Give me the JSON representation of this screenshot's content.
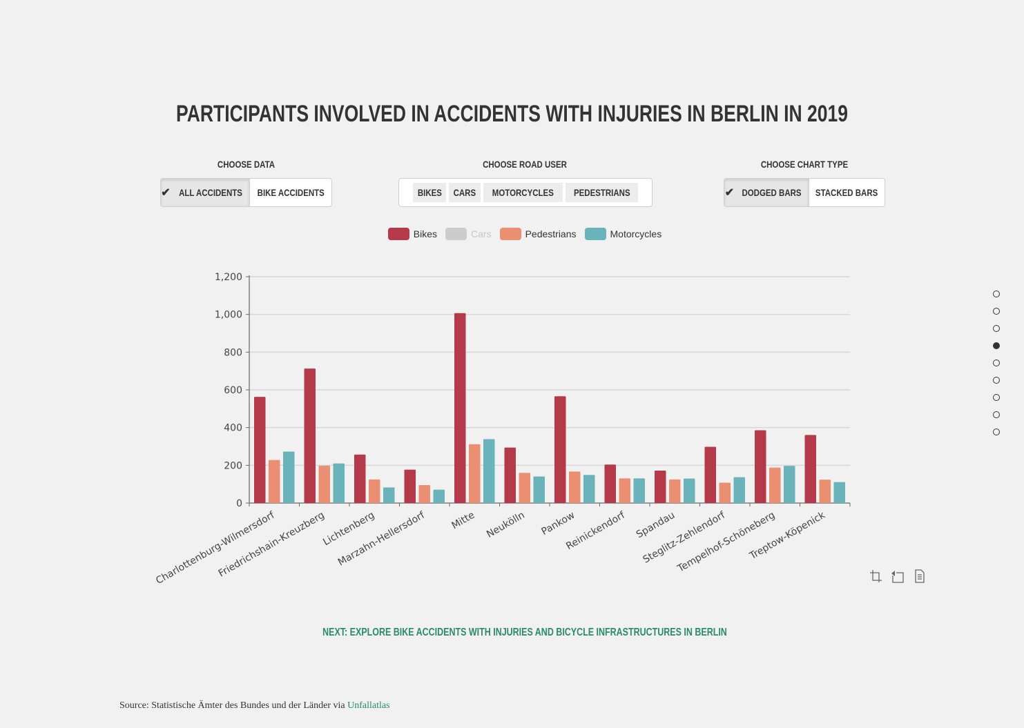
{
  "title": "PARTICIPANTS INVOLVED IN ACCIDENTS WITH INJURIES IN BERLIN IN 2019",
  "controls": {
    "data_label": "CHOOSE DATA",
    "data_options": [
      "ALL ACCIDENTS",
      "BIKE ACCIDENTS"
    ],
    "data_selected": "ALL ACCIDENTS",
    "road_user_label": "CHOOSE ROAD USER",
    "road_user_options": [
      "BIKES",
      "CARS",
      "MOTORCYCLES",
      "PEDESTRIANS"
    ],
    "chart_type_label": "CHOOSE CHART TYPE",
    "chart_type_options": [
      "DODGED BARS",
      "STACKED BARS"
    ],
    "chart_type_selected": "DODGED BARS"
  },
  "legend": [
    {
      "name": "Bikes",
      "color": "#b43a4a",
      "active": true
    },
    {
      "name": "Cars",
      "color": "#cccccc",
      "active": false
    },
    {
      "name": "Pedestrians",
      "color": "#ea8f71",
      "active": true
    },
    {
      "name": "Motorcycles",
      "color": "#6bb3bb",
      "active": true
    }
  ],
  "chart_data": {
    "type": "bar",
    "categories": [
      "Charlottenburg-Wilmersdorf",
      "Friedrichshain-Kreuzberg",
      "Lichtenberg",
      "Marzahn-Hellersdorf",
      "Mitte",
      "Neukölln",
      "Pankow",
      "Reinickendorf",
      "Spandau",
      "Steglitz-Zehlendorf",
      "Tempelhof-Schöneberg",
      "Treptow-Köpenick"
    ],
    "series": [
      {
        "name": "Bikes",
        "color": "#b43a4a",
        "values": [
          563,
          713,
          257,
          177,
          1007,
          294,
          566,
          204,
          172,
          298,
          386,
          361
        ]
      },
      {
        "name": "Pedestrians",
        "color": "#ea8f71",
        "values": [
          228,
          198,
          125,
          95,
          312,
          160,
          167,
          131,
          125,
          108,
          188,
          124
        ]
      },
      {
        "name": "Motorcycles",
        "color": "#6bb3bb",
        "values": [
          273,
          210,
          83,
          71,
          339,
          141,
          149,
          131,
          130,
          137,
          197,
          111
        ]
      }
    ],
    "ylim": [
      0,
      1200
    ],
    "yticks": [
      0,
      200,
      400,
      600,
      800,
      1000,
      1200
    ],
    "ytick_labels": [
      "0",
      "200",
      "400",
      "600",
      "800",
      "1,000",
      "1,200"
    ],
    "grid": true
  },
  "nav_dots": {
    "count": 9,
    "active_index": 3
  },
  "toolbox": [
    "zoom-icon",
    "restore-icon",
    "data-view-icon"
  ],
  "next_link": "NEXT: EXPLORE BIKE ACCIDENTS WITH INJURIES AND BICYCLE INFRASTRUCTURES IN BERLIN",
  "source": {
    "prefix": "Source: Statistische Ämter des Bundes und der Länder via ",
    "link_text": "Unfallatlas"
  }
}
